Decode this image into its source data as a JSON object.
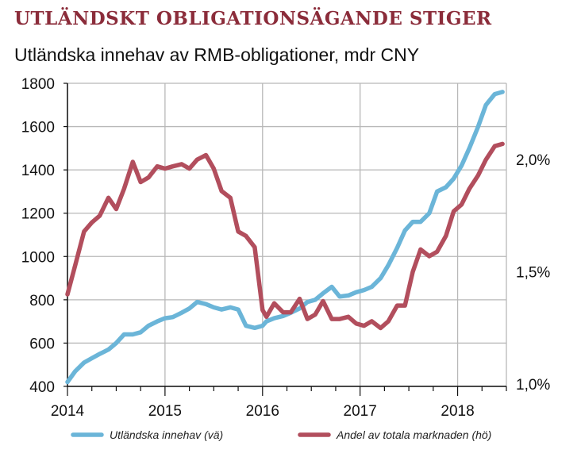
{
  "title": "UTLÄNDSKT OBLIGATIONSÄGANDE STIGER",
  "subtitle": "Utländska innehav av RMB-obligationer, mdr CNY",
  "colors": {
    "title": "#8b2c3a",
    "left_series": "#6bb5d8",
    "right_series": "#b24e5d",
    "grid": "#b8b8b8"
  },
  "chart_data": {
    "type": "line",
    "title": "UTLÄNDSKT OBLIGATIONSÄGANDE STIGER",
    "subtitle": "Utländska innehav av RMB-obligationer, mdr CNY",
    "x_tick_labels": [
      "2014",
      "2015",
      "2016",
      "2017",
      "2018"
    ],
    "y_left": {
      "ylim": [
        400,
        1800
      ],
      "ticks": [
        400,
        600,
        800,
        1000,
        1200,
        1400,
        1600,
        1800
      ],
      "tick_labels": [
        "400",
        "600",
        "800",
        "1000",
        "1200",
        "1400",
        "1600",
        "1800"
      ]
    },
    "y_right": {
      "ylim": [
        0.99,
        2.34
      ],
      "ticks": [
        1.0,
        1.5,
        2.0
      ],
      "tick_labels": [
        "1,0%",
        "1,5%",
        "2,0%"
      ]
    },
    "grid": true,
    "legend_position": "bottom",
    "series": [
      {
        "name": "Utländska innehav (vä)",
        "axis": "left",
        "color": "#6bb5d8",
        "x": [
          2014.0,
          2014.08,
          2014.17,
          2014.25,
          2014.33,
          2014.42,
          2014.5,
          2014.58,
          2014.67,
          2014.75,
          2014.83,
          2014.92,
          2015.0,
          2015.08,
          2015.17,
          2015.25,
          2015.33,
          2015.42,
          2015.5,
          2015.58,
          2015.67,
          2015.75,
          2015.83,
          2015.92,
          2016.0,
          2016.04,
          2016.12,
          2016.21,
          2016.29,
          2016.38,
          2016.46,
          2016.54,
          2016.62,
          2016.71,
          2016.79,
          2016.88,
          2016.96,
          2017.04,
          2017.12,
          2017.21,
          2017.29,
          2017.38,
          2017.46,
          2017.54,
          2017.62,
          2017.71,
          2017.79,
          2017.88,
          2017.96,
          2018.04,
          2018.12,
          2018.21,
          2018.29,
          2018.38,
          2018.46
        ],
        "values": [
          420,
          470,
          510,
          530,
          550,
          570,
          600,
          640,
          640,
          650,
          680,
          700,
          715,
          720,
          740,
          760,
          790,
          780,
          765,
          755,
          765,
          755,
          680,
          670,
          680,
          700,
          715,
          725,
          740,
          760,
          790,
          800,
          830,
          860,
          815,
          820,
          835,
          845,
          860,
          900,
          960,
          1040,
          1120,
          1160,
          1160,
          1200,
          1300,
          1320,
          1360,
          1420,
          1500,
          1600,
          1700,
          1750,
          1760
        ],
        "values_note": "approximate"
      },
      {
        "name": "Andel av totala marknaden (hö)",
        "axis": "right",
        "color": "#b24e5d",
        "x": [
          2014.0,
          2014.08,
          2014.17,
          2014.25,
          2014.33,
          2014.42,
          2014.5,
          2014.58,
          2014.67,
          2014.75,
          2014.83,
          2014.92,
          2015.0,
          2015.08,
          2015.17,
          2015.25,
          2015.33,
          2015.42,
          2015.5,
          2015.58,
          2015.67,
          2015.75,
          2015.83,
          2015.92,
          2016.0,
          2016.04,
          2016.12,
          2016.21,
          2016.29,
          2016.38,
          2016.46,
          2016.54,
          2016.62,
          2016.71,
          2016.79,
          2016.88,
          2016.96,
          2017.04,
          2017.12,
          2017.21,
          2017.29,
          2017.38,
          2017.46,
          2017.54,
          2017.62,
          2017.71,
          2017.79,
          2017.88,
          2017.96,
          2018.04,
          2018.12,
          2018.21,
          2018.29,
          2018.38,
          2018.46
        ],
        "values": [
          1.4,
          1.53,
          1.68,
          1.72,
          1.75,
          1.83,
          1.78,
          1.87,
          1.99,
          1.9,
          1.92,
          1.97,
          1.96,
          1.97,
          1.98,
          1.96,
          2.0,
          2.02,
          1.96,
          1.86,
          1.83,
          1.68,
          1.66,
          1.61,
          1.33,
          1.3,
          1.36,
          1.32,
          1.32,
          1.38,
          1.29,
          1.31,
          1.37,
          1.29,
          1.29,
          1.3,
          1.27,
          1.26,
          1.28,
          1.25,
          1.28,
          1.35,
          1.35,
          1.5,
          1.6,
          1.57,
          1.59,
          1.66,
          1.77,
          1.8,
          1.87,
          1.93,
          2.0,
          2.06,
          2.07
        ],
        "values_note": "approximate"
      }
    ]
  }
}
